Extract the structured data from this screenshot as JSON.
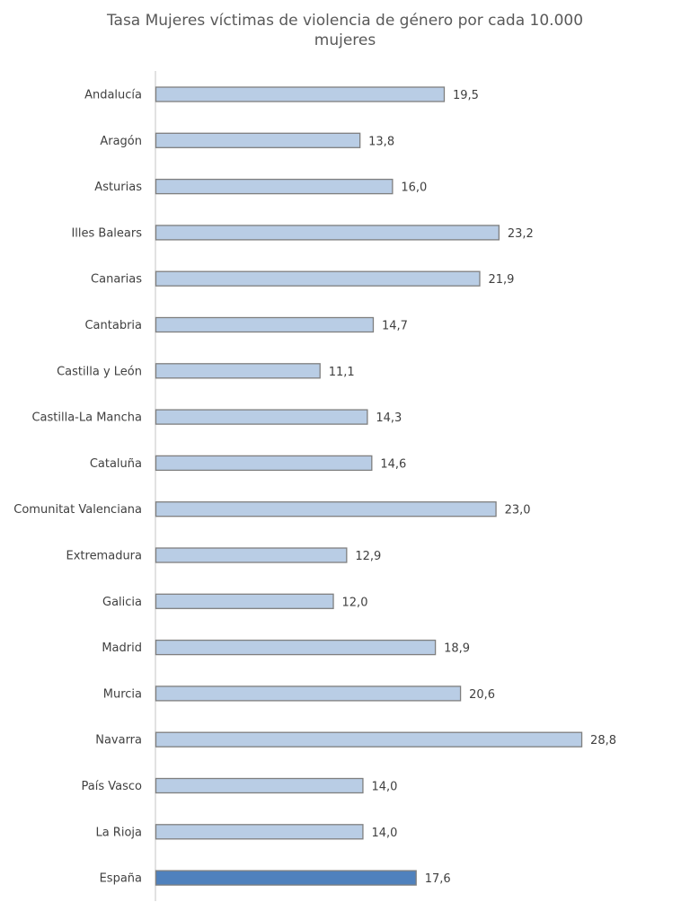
{
  "chart_data": {
    "type": "bar",
    "orientation": "horizontal",
    "title": "Tasa Mujeres víctimas de violencia de género por cada 10.000 mujeres",
    "title_lines": [
      "Tasa Mujeres víctimas de violencia de género por cada 10.000",
      "mujeres"
    ],
    "xlabel": "",
    "ylabel": "",
    "xlim": [
      0,
      35
    ],
    "grid": false,
    "legend": "none",
    "categories": [
      "Andalucía",
      "Aragón",
      "Asturias",
      "Illes Balears",
      "Canarias",
      "Cantabria",
      "Castilla y León",
      "Castilla-La Mancha",
      "Cataluña",
      "Comunitat Valenciana",
      "Extremadura",
      "Galicia",
      "Madrid",
      "Murcia",
      "Navarra",
      "País Vasco",
      "La Rioja",
      "España"
    ],
    "values": [
      19.5,
      13.8,
      16.0,
      23.2,
      21.9,
      14.7,
      11.1,
      14.3,
      14.6,
      23.0,
      12.9,
      12.0,
      18.9,
      20.6,
      28.8,
      14.0,
      14.0,
      17.6
    ],
    "data_labels": [
      "19,5",
      "13,8",
      "16,0",
      "23,2",
      "21,9",
      "14,7",
      "11,1",
      "14,3",
      "14,6",
      "23,0",
      "12,9",
      "12,0",
      "18,9",
      "20,6",
      "28,8",
      "14,0",
      "14,0",
      "17,6"
    ],
    "colors": {
      "default": "#B9CDE5",
      "highlight": "#4F81BD",
      "highlight_category": "España",
      "border": "#7F7F7F"
    }
  }
}
